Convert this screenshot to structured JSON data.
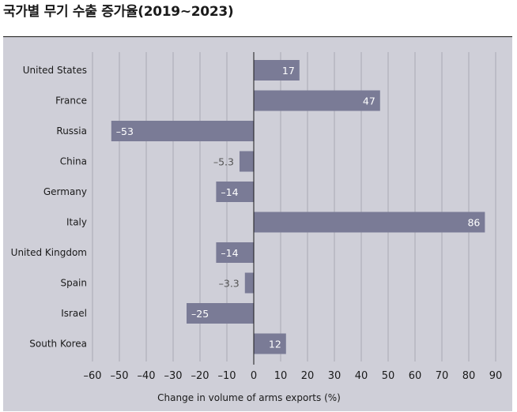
{
  "page": {
    "title": "국가별 무기 수출 증가율(2019~2023)"
  },
  "chart_data": {
    "type": "bar",
    "orientation": "horizontal",
    "title": "국가별 무기 수출 증가율(2019~2023)",
    "xlabel": "Change in volume of arms exports (%)",
    "ylabel": "",
    "categories": [
      "United States",
      "France",
      "Russia",
      "China",
      "Germany",
      "Italy",
      "United Kingdom",
      "Spain",
      "Israel",
      "South Korea"
    ],
    "values": [
      17,
      47,
      -53,
      -5.3,
      -14,
      86,
      -14,
      -3.3,
      -25,
      12
    ],
    "value_labels": [
      "17",
      "47",
      "–53",
      "–5.3",
      "–14",
      "86",
      "–14",
      "–3.3",
      "–25",
      "12"
    ],
    "xlim": [
      -60,
      90
    ],
    "xticks": [
      -60,
      -50,
      -40,
      -30,
      -20,
      -10,
      0,
      10,
      20,
      30,
      40,
      50,
      60,
      70,
      80,
      90
    ],
    "xtick_labels": [
      "–60",
      "–50",
      "–40",
      "–30",
      "–20",
      "–10",
      "0",
      "10",
      "20",
      "30",
      "40",
      "50",
      "60",
      "70",
      "80",
      "90"
    ],
    "grid": true,
    "bar_color": "#7a7b96",
    "background_color": "#cfcfd8",
    "grid_color": "#a9a9b4"
  }
}
